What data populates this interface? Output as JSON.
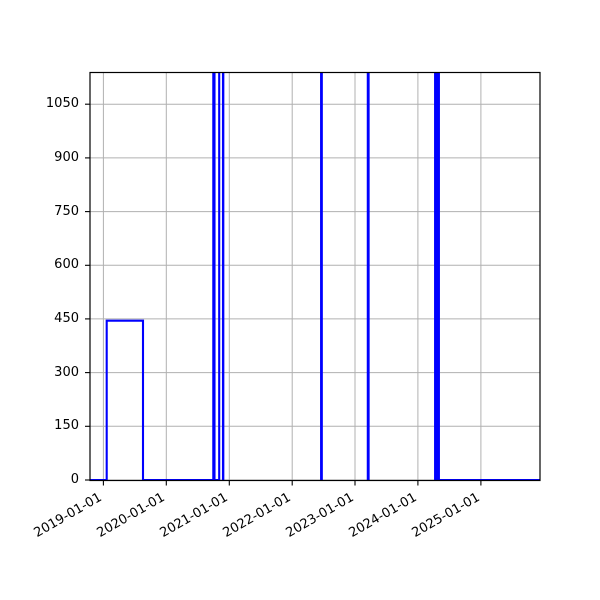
{
  "figure": {
    "background": "#ffffff",
    "plot_background": "#ffffff"
  },
  "chart_data": {
    "type": "line",
    "title": "",
    "xlabel": "",
    "ylabel": "",
    "grid": true,
    "legend": false,
    "line_color": "#0000ff",
    "line_width": 2.1,
    "grid_color": "#b0b0b0",
    "axis_color": "#000000",
    "tick_label_color": "#000000",
    "xlim": [
      "2018-10-15",
      "2025-12-10"
    ],
    "ylim": [
      0,
      1140
    ],
    "y_ticks": [
      0,
      150,
      300,
      450,
      600,
      750,
      900,
      1050
    ],
    "y_tick_labels": [
      "0",
      "150",
      "300",
      "450",
      "600",
      "750",
      "900",
      "1050"
    ],
    "x_ticks": [
      "2019-01-01",
      "2020-01-01",
      "2021-01-01",
      "2022-01-01",
      "2023-01-01",
      "2024-01-01",
      "2025-01-01"
    ],
    "x_tick_labels": [
      "2019-01-01",
      "2020-01-01",
      "2021-01-01",
      "2022-01-01",
      "2023-01-01",
      "2024-01-01",
      "2025-01-01"
    ],
    "x_tick_rotation_deg": 30,
    "note": "Narrow vertical spikes exceed the y-axis range and are clipped at the top of the axes; 1500 is used as a stand-in value for the off-scale segments.",
    "series": [
      {
        "name": "value",
        "step": true,
        "points": [
          [
            "2018-10-15",
            0
          ],
          [
            "2019-01-20",
            0
          ],
          [
            "2019-01-20",
            445
          ],
          [
            "2019-08-19",
            445
          ],
          [
            "2019-08-19",
            0
          ],
          [
            "2020-09-30",
            0
          ],
          [
            "2020-09-30",
            1500
          ],
          [
            "2020-10-07",
            1500
          ],
          [
            "2020-10-07",
            0
          ],
          [
            "2020-11-03",
            0
          ],
          [
            "2020-11-03",
            1500
          ],
          [
            "2020-11-25",
            1500
          ],
          [
            "2020-11-25",
            0
          ],
          [
            "2020-11-27",
            0
          ],
          [
            "2020-11-27",
            1500
          ],
          [
            "2022-06-18",
            1500
          ],
          [
            "2022-06-18",
            0
          ],
          [
            "2022-06-22",
            0
          ],
          [
            "2022-06-22",
            1500
          ],
          [
            "2023-03-16",
            1500
          ],
          [
            "2023-03-16",
            0
          ],
          [
            "2023-03-21",
            0
          ],
          [
            "2023-03-21",
            1500
          ],
          [
            "2024-04-10",
            1500
          ],
          [
            "2024-04-10",
            0
          ],
          [
            "2024-04-20",
            0
          ],
          [
            "2024-04-20",
            1500
          ],
          [
            "2024-05-02",
            1500
          ],
          [
            "2024-05-02",
            0
          ],
          [
            "2025-12-10",
            0
          ]
        ]
      }
    ]
  }
}
